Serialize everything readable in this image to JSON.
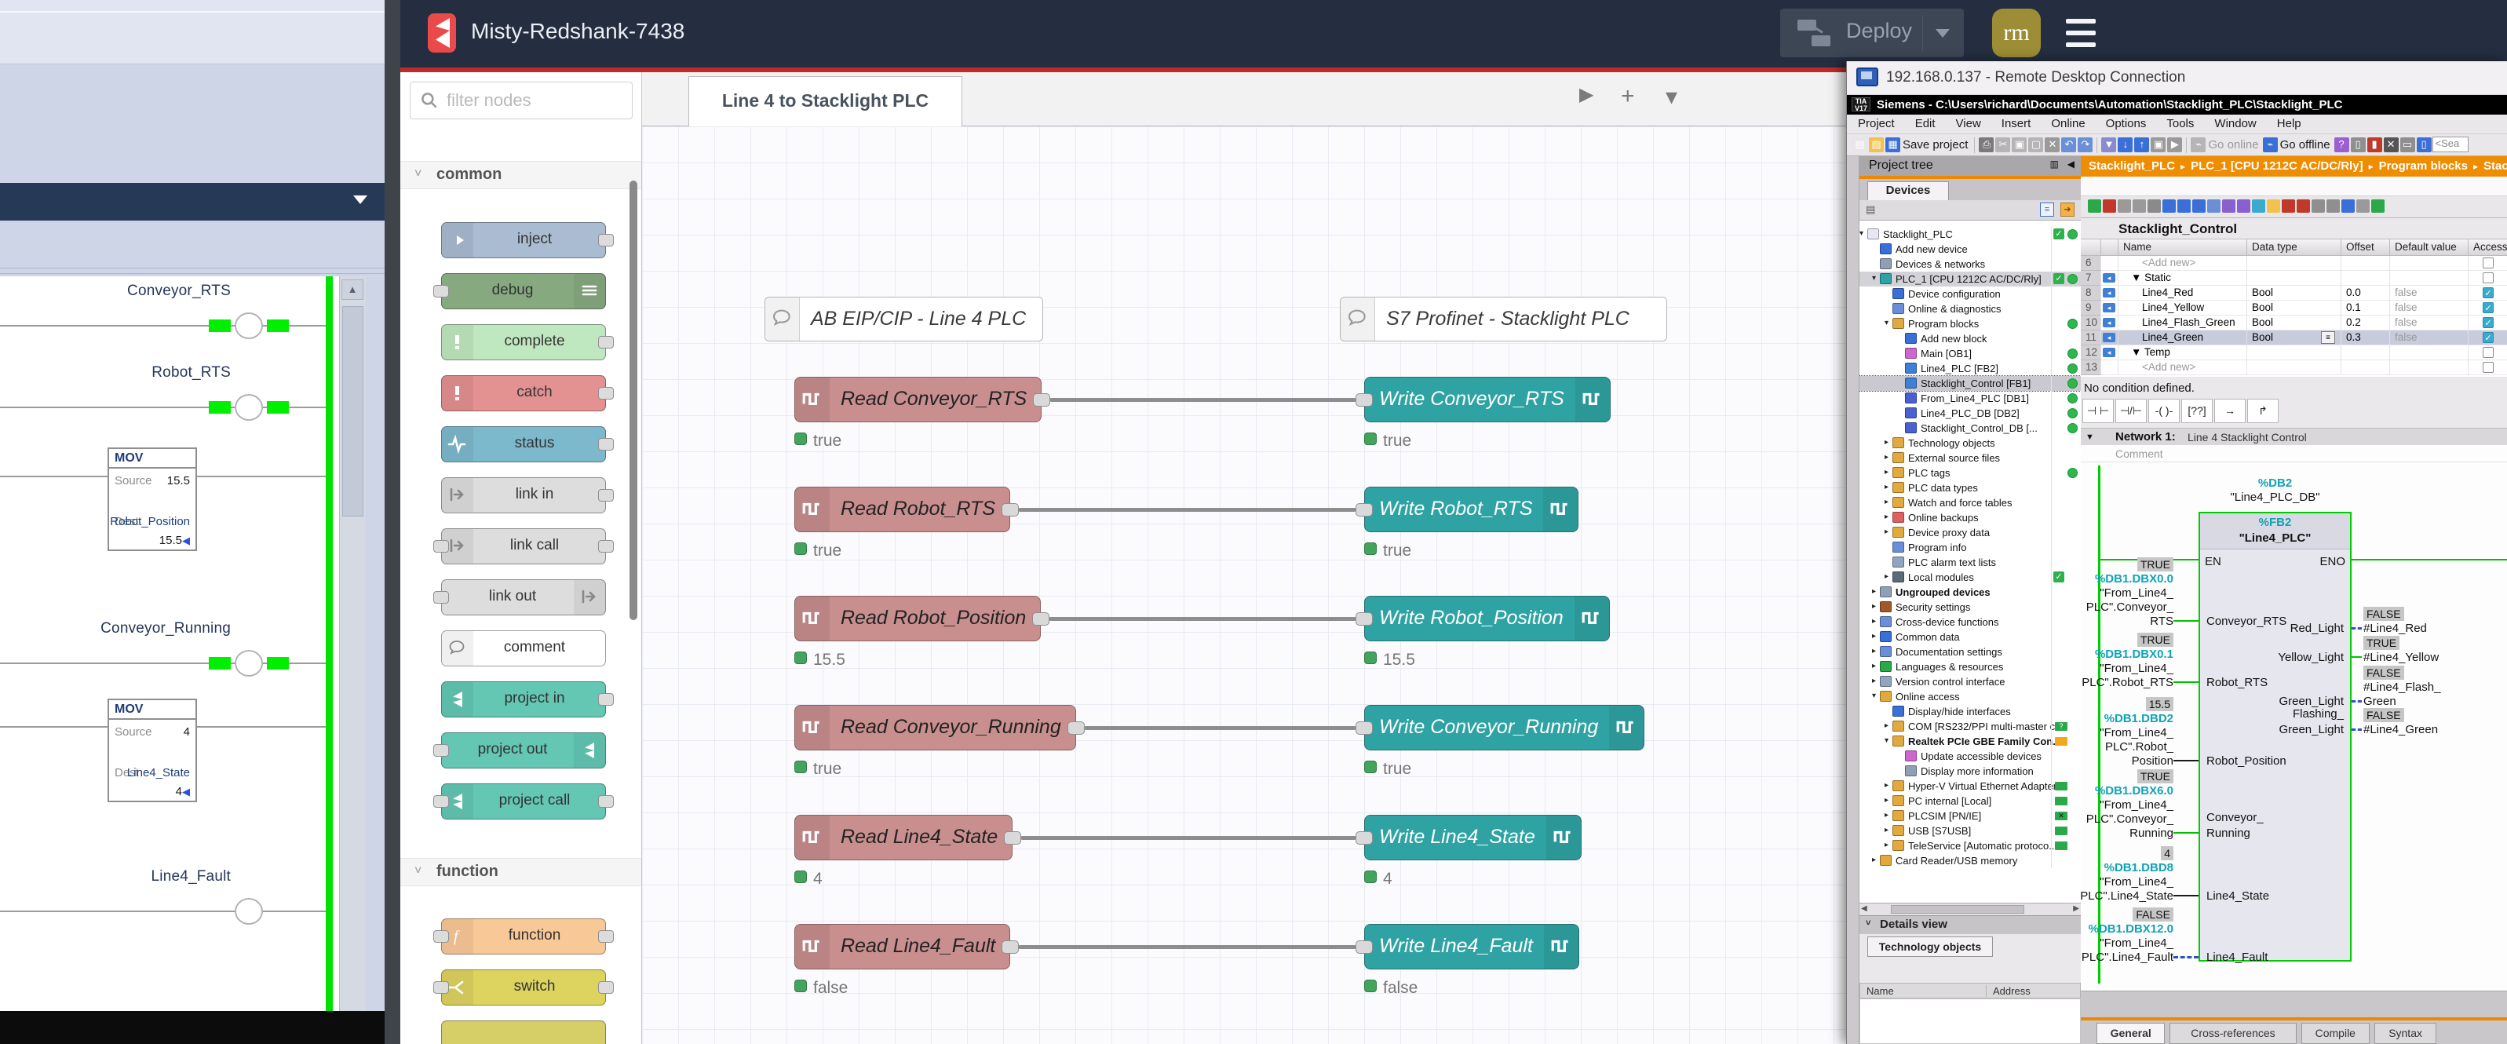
{
  "colors": {
    "accent_red": "#bf2b2b",
    "header_bg": "#242e40",
    "logo_red": "#ea4a4a",
    "avatar_bg": "#9d8d36",
    "read_node": "#c98f8f",
    "write_node": "#2fa3a3",
    "status_green": "#44a45e",
    "rail_green": "#00e100",
    "tia_orange": "#ee8800",
    "tia_teal": "#0fa3b5"
  },
  "ladder": {
    "dropdown_icon": "caret-down-icon",
    "rungs": [
      {
        "type": "coil",
        "label": "Conveyor_RTS",
        "energized": true
      },
      {
        "type": "coil",
        "label": "Robot_RTS",
        "energized": true
      },
      {
        "type": "mov",
        "title": "MOV",
        "source_label": "Source",
        "source_value": "15.5",
        "dest_label": "Dest",
        "dest_tag": "Robot_Position",
        "dest_value": "15.5"
      },
      {
        "type": "coil",
        "label": "Conveyor_Running",
        "energized": true
      },
      {
        "type": "mov",
        "title": "MOV",
        "source_label": "Source",
        "source_value": "4",
        "dest_label": "Dest",
        "dest_tag": "Line4_State",
        "dest_value": "4"
      },
      {
        "type": "contact",
        "label": "Line4_Fault",
        "energized": false
      }
    ]
  },
  "nodered": {
    "header": {
      "title": "Misty-Redshank-7438",
      "deploy_label": "Deploy",
      "avatar": "rm"
    },
    "palette": {
      "search_placeholder": "filter nodes",
      "categories": [
        {
          "label": "common",
          "items": [
            {
              "label": "inject",
              "color": "#a9bcd1",
              "icon": "arrow-icon",
              "icon_side": "left",
              "ports": "right"
            },
            {
              "label": "debug",
              "color": "#87a980",
              "icon": "list-icon",
              "icon_side": "right",
              "ports": "left"
            },
            {
              "label": "complete",
              "color": "#c0e8c0",
              "icon": "exclaim-icon",
              "icon_side": "left",
              "ports": "right"
            },
            {
              "label": "catch",
              "color": "#e49191",
              "icon": "exclaim-icon",
              "icon_side": "left",
              "ports": "right"
            },
            {
              "label": "status",
              "color": "#7db9cc",
              "icon": "pulse-icon",
              "icon_side": "left",
              "ports": "right"
            },
            {
              "label": "link in",
              "color": "#dddddd",
              "icon": "link-icon",
              "icon_side": "left",
              "ports": "right"
            },
            {
              "label": "link call",
              "color": "#dddddd",
              "icon": "link-icon",
              "icon_side": "left",
              "ports": "both"
            },
            {
              "label": "link out",
              "color": "#dddddd",
              "icon": "link-icon",
              "icon_side": "right",
              "ports": "left"
            },
            {
              "label": "comment",
              "color": "#ffffff",
              "icon": "bubble-icon",
              "icon_side": "left",
              "ports": "none"
            },
            {
              "label": "project in",
              "color": "#63c7b4",
              "icon": "flowfuse-icon",
              "icon_side": "left",
              "ports": "right"
            },
            {
              "label": "project out",
              "color": "#63c7b4",
              "icon": "flowfuse-icon",
              "icon_side": "right",
              "ports": "left"
            },
            {
              "label": "project call",
              "color": "#63c7b4",
              "icon": "flowfuse-icon",
              "icon_side": "left",
              "ports": "both"
            }
          ]
        },
        {
          "label": "function",
          "items": [
            {
              "label": "function",
              "color": "#f9c897",
              "icon": "fn-icon",
              "icon_side": "left",
              "ports": "both"
            },
            {
              "label": "switch",
              "color": "#ddd35f",
              "icon": "fork-icon",
              "icon_side": "left",
              "ports": "both"
            },
            {
              "label": "",
              "color": "#d6cf67",
              "icon": "none",
              "icon_side": "left",
              "ports": "none",
              "partial": true
            }
          ]
        }
      ]
    },
    "tab": {
      "label": "Line 4 to Stacklight PLC"
    },
    "tab_buttons": {
      "scroll": "▶",
      "add": "+",
      "caret": "▾"
    },
    "debug": {
      "label": "debug",
      "icon": "bug-icon"
    },
    "canvas": {
      "comments": [
        "AB EIP/CIP - Line 4 PLC",
        "S7 Profinet - Stacklight PLC"
      ],
      "rows": [
        {
          "read": "Read Conveyor_RTS",
          "read_status": "true",
          "write": "Write Conveyor_RTS",
          "write_status": "true"
        },
        {
          "read": "Read Robot_RTS",
          "read_status": "true",
          "write": "Write Robot_RTS",
          "write_status": "true"
        },
        {
          "read": "Read Robot_Position",
          "read_status": "15.5",
          "write": "Write Robot_Position",
          "write_status": "15.5"
        },
        {
          "read": "Read Conveyor_Running",
          "read_status": "true",
          "write": "Write Conveyor_Running",
          "write_status": "true"
        },
        {
          "read": "Read Line4_State",
          "read_status": "4",
          "write": "Write Line4_State",
          "write_status": "4"
        },
        {
          "read": "Read Line4_Fault",
          "read_status": "false",
          "write": "Write Line4_Fault",
          "write_status": "false"
        }
      ]
    }
  },
  "rdp": {
    "title": "192.168.0.137 - Remote Desktop Connection",
    "tia": {
      "window_title": "Siemens  -  C:\\Users\\richard\\Documents\\Automation\\Stacklight_PLC\\Stacklight_PLC",
      "menus": [
        "Project",
        "Edit",
        "View",
        "Insert",
        "Online",
        "Options",
        "Tools",
        "Window",
        "Help"
      ],
      "toolbar": {
        "save": "Save project",
        "go_online": "Go online",
        "go_offline": "Go offline",
        "search_value": "<Sea"
      },
      "breadcrumb": [
        "Stacklight_PLC",
        "PLC_1 [CPU 1212C AC/DC/Rly]",
        "Program blocks",
        "Stacklight_Co"
      ],
      "project_tree": {
        "title": "Project tree",
        "tab": "Devices",
        "items": [
          {
            "label": "Stacklight_PLC",
            "level": 0,
            "arrow": "open",
            "icon": "project",
            "check": true,
            "dot": true
          },
          {
            "label": "Add new device",
            "level": 1,
            "icon": "addnew"
          },
          {
            "label": "Devices & networks",
            "level": 1,
            "icon": "network"
          },
          {
            "label": "PLC_1 [CPU 1212C AC/DC/Rly]",
            "level": 1,
            "arrow": "open",
            "icon": "plc",
            "check": true,
            "dot": true,
            "hl": true
          },
          {
            "label": "Device configuration",
            "level": 2,
            "icon": "devcfg"
          },
          {
            "label": "Online & diagnostics",
            "level": 2,
            "icon": "diag"
          },
          {
            "label": "Program blocks",
            "level": 2,
            "arrow": "open",
            "icon": "folder",
            "dot": true
          },
          {
            "label": "Add new block",
            "level": 3,
            "icon": "addnew"
          },
          {
            "label": "Main [OB1]",
            "level": 3,
            "icon": "ob",
            "dot": true
          },
          {
            "label": "Line4_PLC [FB2]",
            "level": 3,
            "icon": "fb",
            "dot": true
          },
          {
            "label": "Stacklight_Control [FB1]",
            "level": 3,
            "icon": "fb",
            "dot": true,
            "selected": true
          },
          {
            "label": "From_Line4_PLC [DB1]",
            "level": 3,
            "icon": "db",
            "dot": true
          },
          {
            "label": "Line4_PLC_DB [DB2]",
            "level": 3,
            "icon": "db",
            "dot": true
          },
          {
            "label": "Stacklight_Control_DB [...",
            "level": 3,
            "icon": "db",
            "dot": true
          },
          {
            "label": "Technology objects",
            "level": 2,
            "arrow": "closed",
            "icon": "tech"
          },
          {
            "label": "External source files",
            "level": 2,
            "arrow": "closed",
            "icon": "extsrc"
          },
          {
            "label": "PLC tags",
            "level": 2,
            "arrow": "closed",
            "icon": "tags",
            "dot": true
          },
          {
            "label": "PLC data types",
            "level": 2,
            "arrow": "closed",
            "icon": "datatypes"
          },
          {
            "label": "Watch and force tables",
            "level": 2,
            "arrow": "closed",
            "icon": "watch"
          },
          {
            "label": "Online backups",
            "level": 2,
            "arrow": "closed",
            "icon": "backup"
          },
          {
            "label": "Device proxy data",
            "level": 2,
            "arrow": "closed",
            "icon": "proxy"
          },
          {
            "label": "Program info",
            "level": 2,
            "icon": "info"
          },
          {
            "label": "PLC alarm text lists",
            "level": 2,
            "icon": "alarm"
          },
          {
            "label": "Local modules",
            "level": 2,
            "arrow": "closed",
            "icon": "modules",
            "check": true
          },
          {
            "label": "Ungrouped devices",
            "level": 1,
            "arrow": "closed",
            "icon": "ungrouped",
            "bold": true
          },
          {
            "label": "Security settings",
            "level": 1,
            "arrow": "closed",
            "icon": "security"
          },
          {
            "label": "Cross-device functions",
            "level": 1,
            "arrow": "closed",
            "icon": "crossdev"
          },
          {
            "label": "Common data",
            "level": 1,
            "arrow": "closed",
            "icon": "common"
          },
          {
            "label": "Documentation settings",
            "level": 1,
            "arrow": "closed",
            "icon": "docs"
          },
          {
            "label": "Languages & resources",
            "level": 1,
            "arrow": "closed",
            "icon": "lang"
          },
          {
            "label": "Version control interface",
            "level": 1,
            "arrow": "closed",
            "icon": "vcs"
          },
          {
            "label": "Online access",
            "level": 1,
            "arrow": "open",
            "icon": "online"
          },
          {
            "label": "Display/hide interfaces",
            "level": 2,
            "icon": "iface"
          },
          {
            "label": "COM [RS232/PPI multi-master c...",
            "level": 2,
            "arrow": "closed",
            "icon": "nic",
            "badge": "q"
          },
          {
            "label": "Realtek PCIe GBE Family Con...",
            "level": 2,
            "arrow": "open",
            "icon": "nic",
            "badge": "orange",
            "bold": true
          },
          {
            "label": "Update accessible devices",
            "level": 3,
            "icon": "update"
          },
          {
            "label": "Display more information",
            "level": 3,
            "icon": "moreinfo"
          },
          {
            "label": "Hyper-V Virtual Ethernet Adapter",
            "level": 2,
            "arrow": "closed",
            "icon": "nic",
            "badge": "green"
          },
          {
            "label": "PC internal [Local]",
            "level": 2,
            "arrow": "closed",
            "icon": "nic",
            "badge": "green"
          },
          {
            "label": "PLCSIM [PN/IE]",
            "level": 2,
            "arrow": "closed",
            "icon": "nic",
            "badge": "x"
          },
          {
            "label": "USB [S7USB]",
            "level": 2,
            "arrow": "closed",
            "icon": "nic",
            "badge": "green"
          },
          {
            "label": "TeleService [Automatic protoco...",
            "level": 2,
            "arrow": "closed",
            "icon": "nic",
            "badge": "green"
          },
          {
            "label": "Card Reader/USB memory",
            "level": 1,
            "arrow": "closed",
            "icon": "cardreader"
          }
        ]
      },
      "details_view": {
        "header": "Details view",
        "tab": "Technology objects",
        "columns": [
          "Name",
          "Address"
        ]
      },
      "block_table": {
        "title": "Stacklight_Control",
        "columns": [
          "Name",
          "Data type",
          "Offset",
          "Default value",
          "Accessible"
        ],
        "rows": [
          {
            "num": "6",
            "name": "<Add new>",
            "dim": true,
            "indent": 2
          },
          {
            "num": "7",
            "name": "Static",
            "section": true,
            "tagicon": true
          },
          {
            "num": "8",
            "name": "Line4_Red",
            "type": "Bool",
            "offset": "0.0",
            "default": "false",
            "acc": true,
            "tagicon": true
          },
          {
            "num": "9",
            "name": "Line4_Yellow",
            "type": "Bool",
            "offset": "0.1",
            "default": "false",
            "acc": true,
            "tagicon": true
          },
          {
            "num": "10",
            "name": "Line4_Flash_Green",
            "type": "Bool",
            "offset": "0.2",
            "default": "false",
            "acc": true,
            "tagicon": true
          },
          {
            "num": "11",
            "name": "Line4_Green",
            "type": "Bool",
            "offset": "0.3",
            "default": "false",
            "acc": true,
            "tagicon": true,
            "selected": true
          },
          {
            "num": "12",
            "name": "Temp",
            "section": true,
            "tagicon": true
          },
          {
            "num": "13",
            "name": "<Add new>",
            "dim": true
          }
        ]
      },
      "lad": {
        "no_condition": "No condition defined.",
        "toolbar_icons": [
          "no-contact-icon",
          "nc-contact-icon",
          "coil-icon",
          "empty-box-icon",
          "open-branch-icon",
          "close-branch-icon"
        ],
        "network_label": "Network 1:",
        "network_title": "Line 4 Stacklight Control",
        "comment_placeholder": "Comment",
        "db_addr": "%DB2",
        "db_name": "\"Line4_PLC_DB\"",
        "fb_addr": "%FB2",
        "fb_name": "\"Line4_PLC\"",
        "en": "EN",
        "eno": "ENO",
        "inputs": [
          {
            "value": "TRUE",
            "addr": "%DB1.DBX0.0",
            "operand": [
              "\"From_Line4_",
              "PLC\".Conveyor_",
              "RTS"
            ],
            "pin": [
              "Conveyor_RTS"
            ],
            "wire": "green"
          },
          {
            "value": "TRUE",
            "addr": "%DB1.DBX0.1",
            "operand": [
              "\"From_Line4_",
              "PLC\".Robot_RTS"
            ],
            "pin": [
              "Robot_RTS"
            ],
            "wire": "green"
          },
          {
            "value": "15.5",
            "addr": "%DB1.DBD2",
            "operand": [
              "\"From_Line4_",
              "PLC\".Robot_",
              "Position"
            ],
            "pin": [
              "Robot_Position"
            ],
            "wire": "black"
          },
          {
            "value": "TRUE",
            "addr": "%DB1.DBX6.0",
            "operand": [
              "\"From_Line4_",
              "PLC\".Conveyor_",
              "Running"
            ],
            "pin": [
              "Conveyor_",
              "Running"
            ],
            "wire": "green"
          },
          {
            "value": "4",
            "addr": "%DB1.DBD8",
            "operand": [
              "\"From_Line4_",
              "PLC\".Line4_State"
            ],
            "pin": [
              "Line4_State"
            ],
            "wire": "black"
          },
          {
            "value": "FALSE",
            "addr": "%DB1.DBX12.0",
            "operand": [
              "\"From_Line4_",
              "PLC\".Line4_Fault"
            ],
            "pin": [
              "Line4_Fault"
            ],
            "wire": "blue"
          }
        ],
        "outputs": [
          {
            "pin": [
              "Red_Light"
            ],
            "value": "FALSE",
            "operand": [
              "#Line4_Red"
            ],
            "wire": "blue"
          },
          {
            "pin": [
              "Yellow_Light"
            ],
            "value": "TRUE",
            "operand": [
              "#Line4_Yellow"
            ],
            "wire": "green"
          },
          {
            "pin": [
              "Green_Light"
            ],
            "value": "FALSE",
            "operand": [
              "#Line4_Flash_",
              "Green"
            ],
            "wire": "blue"
          },
          {
            "pin": [
              "Flashing_",
              "Green_Light"
            ],
            "value": "FALSE",
            "operand": [
              "#Line4_Green"
            ],
            "wire": "blue"
          }
        ]
      },
      "bottom_tabs": [
        "General",
        "Cross-references",
        "Compile",
        "Syntax"
      ]
    }
  }
}
